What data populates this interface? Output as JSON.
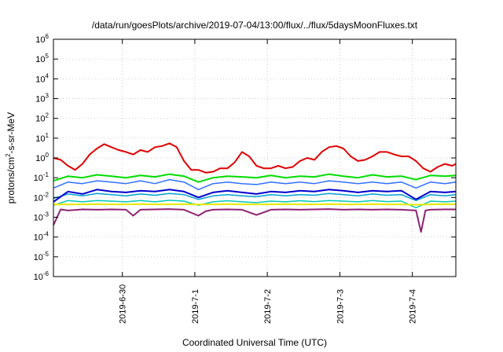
{
  "chart_data": {
    "type": "line",
    "title": "/data/run/goesPlots/archive/2019-07-04/13:00/flux/../flux/5daysMoonFluxes.txt",
    "xlabel": "Coordinated Universal Time (UTC)",
    "ylabel": {
      "pre": "protons/cm",
      "sup": "2",
      "post": "-s-sr-MeV"
    },
    "yscale": "log",
    "ylim": [
      1e-06,
      1000000.0
    ],
    "y_ticks": [
      {
        "value": 1e-06,
        "base": "10",
        "exp": "-6"
      },
      {
        "value": 1e-05,
        "base": "10",
        "exp": "-5"
      },
      {
        "value": 0.0001,
        "base": "10",
        "exp": "-4"
      },
      {
        "value": 0.001,
        "base": "10",
        "exp": "-3"
      },
      {
        "value": 0.01,
        "base": "10",
        "exp": "-2"
      },
      {
        "value": 0.1,
        "base": "10",
        "exp": "-1"
      },
      {
        "value": 1,
        "base": "10",
        "exp": "0"
      },
      {
        "value": 10,
        "base": "10",
        "exp": "1"
      },
      {
        "value": 100,
        "base": "10",
        "exp": "2"
      },
      {
        "value": 1000,
        "base": "10",
        "exp": "3"
      },
      {
        "value": 10000,
        "base": "10",
        "exp": "4"
      },
      {
        "value": 100000,
        "base": "10",
        "exp": "5"
      },
      {
        "value": 1000000,
        "base": "10",
        "exp": "6"
      }
    ],
    "xlim": [
      -0.95,
      4.6
    ],
    "x_ticks": [
      {
        "value": 0,
        "label": "2019-6-30"
      },
      {
        "value": 1,
        "label": "2019-7-1"
      },
      {
        "value": 2,
        "label": "2019-7-2"
      },
      {
        "value": 3,
        "label": "2019-7-3"
      },
      {
        "value": 4,
        "label": "2019-7-4"
      }
    ],
    "grid": true,
    "legend": "none",
    "series": [
      {
        "color": "#e00000",
        "width": 2,
        "x": [
          -0.95,
          -0.85,
          -0.75,
          -0.65,
          -0.55,
          -0.45,
          -0.35,
          -0.25,
          -0.15,
          -0.05,
          0.05,
          0.15,
          0.25,
          0.35,
          0.45,
          0.55,
          0.65,
          0.75,
          0.85,
          0.95,
          1.05,
          1.15,
          1.25,
          1.35,
          1.45,
          1.55,
          1.65,
          1.75,
          1.85,
          1.95,
          2.05,
          2.15,
          2.25,
          2.35,
          2.45,
          2.55,
          2.65,
          2.75,
          2.85,
          2.95,
          3.05,
          3.15,
          3.25,
          3.35,
          3.45,
          3.55,
          3.65,
          3.75,
          3.85,
          3.95,
          4.05,
          4.15,
          4.25,
          4.35,
          4.45,
          4.55,
          4.6
        ],
        "y": [
          1.0,
          0.8,
          0.4,
          0.25,
          0.5,
          1.5,
          3.0,
          5.0,
          3.5,
          2.5,
          2.0,
          1.5,
          2.5,
          2.0,
          3.5,
          4.0,
          5.5,
          3.5,
          0.7,
          0.25,
          0.25,
          0.18,
          0.2,
          0.3,
          0.3,
          0.6,
          2.0,
          1.2,
          0.4,
          0.3,
          0.3,
          0.4,
          0.3,
          0.35,
          0.7,
          1.0,
          0.8,
          2.0,
          3.5,
          4.0,
          3.0,
          1.2,
          0.7,
          0.8,
          1.2,
          2.0,
          2.0,
          1.5,
          1.2,
          1.2,
          0.7,
          0.3,
          0.2,
          0.35,
          0.5,
          0.4,
          0.5
        ]
      },
      {
        "color": "#00dd00",
        "width": 2,
        "x": [
          -0.95,
          -0.75,
          -0.55,
          -0.35,
          -0.15,
          0.05,
          0.25,
          0.45,
          0.65,
          0.85,
          1.05,
          1.25,
          1.45,
          1.65,
          1.85,
          2.05,
          2.25,
          2.45,
          2.65,
          2.85,
          3.05,
          3.25,
          3.45,
          3.65,
          3.85,
          4.05,
          4.25,
          4.45,
          4.6
        ],
        "y": [
          0.07,
          0.12,
          0.1,
          0.14,
          0.12,
          0.1,
          0.13,
          0.11,
          0.15,
          0.12,
          0.06,
          0.1,
          0.12,
          0.11,
          0.1,
          0.13,
          0.1,
          0.12,
          0.11,
          0.15,
          0.12,
          0.1,
          0.14,
          0.11,
          0.12,
          0.08,
          0.13,
          0.12,
          0.13
        ]
      },
      {
        "color": "#3070ff",
        "width": 1.5,
        "x": [
          -0.95,
          -0.75,
          -0.55,
          -0.35,
          -0.15,
          0.05,
          0.25,
          0.45,
          0.65,
          0.85,
          1.05,
          1.25,
          1.45,
          1.65,
          1.85,
          2.05,
          2.25,
          2.45,
          2.65,
          2.85,
          3.05,
          3.25,
          3.45,
          3.65,
          3.85,
          4.05,
          4.25,
          4.45,
          4.6
        ],
        "y": [
          0.03,
          0.06,
          0.05,
          0.07,
          0.06,
          0.05,
          0.07,
          0.05,
          0.08,
          0.06,
          0.025,
          0.05,
          0.06,
          0.05,
          0.045,
          0.06,
          0.05,
          0.06,
          0.05,
          0.07,
          0.06,
          0.05,
          0.06,
          0.05,
          0.06,
          0.03,
          0.06,
          0.05,
          0.06
        ]
      },
      {
        "color": "#00a0d0",
        "width": 1.5,
        "x": [
          -0.95,
          -0.75,
          -0.55,
          -0.35,
          -0.15,
          0.05,
          0.25,
          0.45,
          0.65,
          0.85,
          1.05,
          1.25,
          1.45,
          1.65,
          1.85,
          2.05,
          2.25,
          2.45,
          2.65,
          2.85,
          3.05,
          3.25,
          3.45,
          3.65,
          3.85,
          4.05,
          4.25,
          4.45,
          4.6
        ],
        "y": [
          0.009,
          0.015,
          0.012,
          0.016,
          0.014,
          0.012,
          0.015,
          0.013,
          0.016,
          0.014,
          0.008,
          0.012,
          0.014,
          0.012,
          0.011,
          0.014,
          0.012,
          0.014,
          0.013,
          0.016,
          0.014,
          0.012,
          0.015,
          0.013,
          0.014,
          0.007,
          0.014,
          0.012,
          0.014
        ]
      },
      {
        "color": "#0000cc",
        "width": 2,
        "x": [
          -0.95,
          -0.75,
          -0.55,
          -0.35,
          -0.15,
          0.05,
          0.25,
          0.45,
          0.65,
          0.85,
          1.05,
          1.25,
          1.45,
          1.65,
          1.85,
          2.05,
          2.25,
          2.45,
          2.65,
          2.85,
          3.05,
          3.25,
          3.45,
          3.65,
          3.85,
          4.05,
          4.25,
          4.45,
          4.6
        ],
        "y": [
          0.006,
          0.02,
          0.015,
          0.025,
          0.02,
          0.018,
          0.022,
          0.02,
          0.025,
          0.02,
          0.01,
          0.018,
          0.022,
          0.018,
          0.015,
          0.02,
          0.018,
          0.022,
          0.02,
          0.025,
          0.022,
          0.018,
          0.022,
          0.02,
          0.022,
          0.008,
          0.02,
          0.018,
          0.02
        ]
      },
      {
        "color": "#00c8b4",
        "width": 1.5,
        "x": [
          -0.95,
          -0.75,
          -0.55,
          -0.35,
          -0.15,
          0.05,
          0.25,
          0.45,
          0.65,
          0.85,
          1.05,
          1.25,
          1.45,
          1.65,
          1.85,
          2.05,
          2.25,
          2.45,
          2.65,
          2.85,
          3.05,
          3.25,
          3.45,
          3.65,
          3.85,
          4.05,
          4.25,
          4.45,
          4.6
        ],
        "y": [
          0.004,
          0.007,
          0.006,
          0.007,
          0.0065,
          0.006,
          0.007,
          0.006,
          0.0072,
          0.0065,
          0.004,
          0.006,
          0.0068,
          0.006,
          0.0055,
          0.0065,
          0.006,
          0.0068,
          0.0062,
          0.007,
          0.0065,
          0.006,
          0.007,
          0.0062,
          0.0065,
          0.003,
          0.0065,
          0.006,
          0.0065
        ]
      },
      {
        "color": "#e8e800",
        "width": 2,
        "x": [
          -0.95,
          -0.75,
          -0.55,
          -0.35,
          -0.15,
          0.05,
          0.25,
          0.45,
          0.65,
          0.85,
          1.05,
          1.25,
          1.45,
          1.65,
          1.85,
          2.05,
          2.25,
          2.45,
          2.65,
          2.85,
          3.05,
          3.25,
          3.45,
          3.65,
          3.85,
          4.05,
          4.25,
          4.45,
          4.6
        ],
        "y": [
          0.0045,
          0.0045,
          0.0045,
          0.0046,
          0.0045,
          0.0045,
          0.0046,
          0.0045,
          0.0045,
          0.0046,
          0.0044,
          0.0045,
          0.0046,
          0.0045,
          0.0045,
          0.0045,
          0.0046,
          0.0045,
          0.0045,
          0.0046,
          0.0045,
          0.0045,
          0.0046,
          0.0045,
          0.0045,
          0.0043,
          0.0045,
          0.0046,
          0.0045
        ]
      },
      {
        "color": "#8e2270",
        "width": 2,
        "x": [
          -0.95,
          -0.85,
          -0.75,
          -0.55,
          -0.35,
          -0.15,
          0.05,
          0.15,
          0.25,
          0.45,
          0.65,
          0.85,
          1.05,
          1.15,
          1.25,
          1.45,
          1.65,
          1.85,
          2.05,
          2.25,
          2.45,
          2.65,
          2.85,
          3.05,
          3.25,
          3.45,
          3.65,
          3.85,
          4.05,
          4.12,
          4.18,
          4.25,
          4.45,
          4.6
        ],
        "y": [
          0.0004,
          0.0025,
          0.0022,
          0.0025,
          0.0024,
          0.0025,
          0.0024,
          0.0012,
          0.0024,
          0.0025,
          0.0026,
          0.0024,
          0.0012,
          0.002,
          0.0024,
          0.0025,
          0.0024,
          0.0013,
          0.0024,
          0.0025,
          0.0024,
          0.0025,
          0.0026,
          0.0024,
          0.0025,
          0.0024,
          0.0025,
          0.0024,
          0.0022,
          0.00018,
          0.0022,
          0.0024,
          0.0025,
          0.0025
        ]
      }
    ]
  }
}
